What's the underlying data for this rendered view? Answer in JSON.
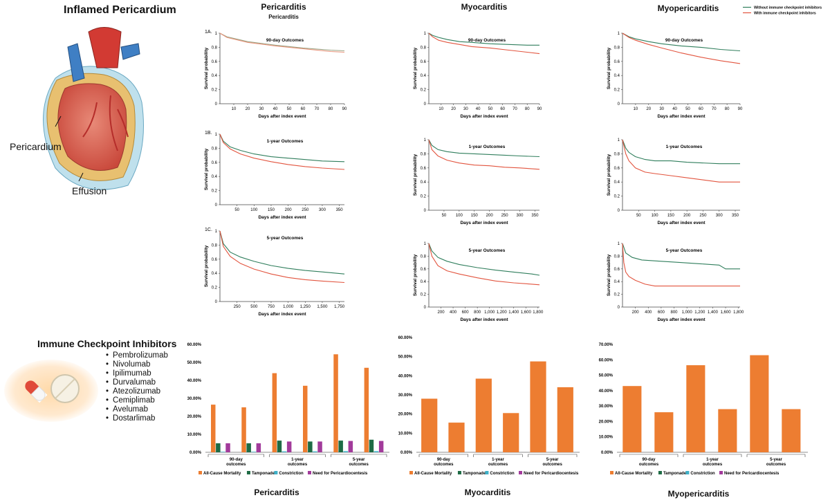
{
  "illustration": {
    "title": "Inflamed Pericardium",
    "label_pericardium": "Pericardium",
    "label_effusion": "Effusion"
  },
  "ici": {
    "title": "Immune Checkpoint Inhibitors",
    "drugs": [
      "Pembrolizumab",
      "Nivolumab",
      "Ipilimumab",
      "Durvalumab",
      "Atezolizumab",
      "Cemiplimab",
      "Avelumab",
      "Dostarlimab"
    ]
  },
  "legend": {
    "without": "Without immune checkpoint inhibitors",
    "with": "With immune checkpoint inhibitors",
    "colors": {
      "without": "#2e7d5b",
      "with": "#e2533d"
    }
  },
  "columns": {
    "pericarditis": {
      "title": "Pericarditis",
      "subtitle": "Pericarditis",
      "bottom_title": "Pericarditis"
    },
    "myocarditis": {
      "title": "Myocarditis",
      "bottom_title": "Myocarditis"
    },
    "myopericarditis": {
      "title": "Myopericarditis",
      "bottom_title": "Myopericarditis"
    }
  },
  "chart_data": [
    {
      "type": "line",
      "panel_id": "1A.",
      "title": "90-day Outcomes",
      "xlabel": "Days after index event",
      "ylabel": "Survival probability",
      "xlim": [
        0,
        90
      ],
      "ylim": [
        0,
        1
      ],
      "xticks": [
        "10",
        "20",
        "30",
        "40",
        "50",
        "60",
        "70",
        "80",
        "90"
      ],
      "yticks": [
        "0",
        "0.2",
        "0.4",
        "0.6",
        "0.8",
        "1"
      ],
      "series": [
        {
          "name": "Without immune checkpoint inhibitors",
          "color": "#9aa383",
          "x": [
            0,
            5,
            20,
            40,
            60,
            80,
            90
          ],
          "y": [
            1,
            0.95,
            0.88,
            0.83,
            0.79,
            0.76,
            0.75
          ]
        },
        {
          "name": "With immune checkpoint inhibitors",
          "color": "#e8937a",
          "x": [
            0,
            5,
            20,
            40,
            60,
            80,
            90
          ],
          "y": [
            1,
            0.94,
            0.87,
            0.82,
            0.78,
            0.74,
            0.73
          ]
        }
      ]
    },
    {
      "type": "line",
      "panel_id": "",
      "title": "90-day Outcomes",
      "xlabel": "Days after index event",
      "ylabel": "Survival probability",
      "xlim": [
        0,
        90
      ],
      "ylim": [
        0,
        1
      ],
      "xticks": [
        "10",
        "20",
        "30",
        "40",
        "50",
        "60",
        "70",
        "80",
        "90"
      ],
      "yticks": [
        "0",
        "0.2",
        "0.4",
        "0.6",
        "0.8",
        "1"
      ],
      "series": [
        {
          "name": "Without immune checkpoint inhibitors",
          "color": "#2e7d5b",
          "x": [
            0,
            3,
            8,
            15,
            25,
            35,
            50,
            65,
            80,
            90
          ],
          "y": [
            1,
            0.97,
            0.94,
            0.91,
            0.88,
            0.87,
            0.85,
            0.84,
            0.83,
            0.83
          ]
        },
        {
          "name": "With immune checkpoint inhibitors",
          "color": "#e2533d",
          "x": [
            0,
            3,
            8,
            15,
            25,
            35,
            50,
            65,
            80,
            90
          ],
          "y": [
            1,
            0.95,
            0.9,
            0.87,
            0.84,
            0.81,
            0.79,
            0.76,
            0.73,
            0.71
          ]
        }
      ]
    },
    {
      "type": "line",
      "panel_id": "",
      "title": "90-day Outcomes",
      "xlabel": "Days after index event",
      "ylabel": "Survival probability",
      "xlim": [
        0,
        90
      ],
      "ylim": [
        0,
        1
      ],
      "xticks": [
        "10",
        "20",
        "30",
        "40",
        "50",
        "60",
        "70",
        "80",
        "90"
      ],
      "yticks": [
        "0",
        "0.2",
        "0.4",
        "0.6",
        "0.8",
        "1"
      ],
      "series": [
        {
          "name": "Without immune checkpoint inhibitors",
          "color": "#2e7d5b",
          "x": [
            0,
            5,
            10,
            20,
            30,
            45,
            60,
            75,
            90
          ],
          "y": [
            1,
            0.95,
            0.92,
            0.88,
            0.85,
            0.82,
            0.8,
            0.77,
            0.75
          ]
        },
        {
          "name": "With immune checkpoint inhibitors",
          "color": "#e2533d",
          "x": [
            0,
            5,
            10,
            20,
            30,
            45,
            60,
            75,
            90
          ],
          "y": [
            1,
            0.94,
            0.9,
            0.84,
            0.79,
            0.72,
            0.66,
            0.61,
            0.57
          ]
        }
      ]
    },
    {
      "type": "line",
      "panel_id": "1B.",
      "title": "1-year Outcomes",
      "xlabel": "Days after index event",
      "ylabel": "Survival probability",
      "xlim": [
        0,
        365
      ],
      "ylim": [
        0,
        1
      ],
      "xticks": [
        "50",
        "100",
        "150",
        "200",
        "250",
        "300",
        "350"
      ],
      "yticks": [
        "0",
        "0.2",
        "0.4",
        "0.6",
        "0.8",
        "1"
      ],
      "series": [
        {
          "name": "Without immune checkpoint inhibitors",
          "color": "#2e7d5b",
          "x": [
            0,
            10,
            30,
            60,
            100,
            150,
            200,
            250,
            300,
            365
          ],
          "y": [
            1,
            0.9,
            0.82,
            0.77,
            0.72,
            0.68,
            0.66,
            0.64,
            0.62,
            0.61
          ]
        },
        {
          "name": "With immune checkpoint inhibitors",
          "color": "#e2533d",
          "x": [
            0,
            10,
            30,
            60,
            100,
            150,
            200,
            250,
            300,
            365
          ],
          "y": [
            1,
            0.88,
            0.79,
            0.72,
            0.66,
            0.61,
            0.57,
            0.54,
            0.52,
            0.5
          ]
        }
      ]
    },
    {
      "type": "line",
      "panel_id": "",
      "title": "1-year Outcomes",
      "xlabel": "Days after index event",
      "ylabel": "Survival probability",
      "xlim": [
        0,
        365
      ],
      "ylim": [
        0,
        1
      ],
      "xticks": [
        "50",
        "100",
        "150",
        "200",
        "250",
        "300",
        "350"
      ],
      "yticks": [
        "0",
        "0.2",
        "0.4",
        "0.6",
        "0.8",
        "1"
      ],
      "series": [
        {
          "name": "Without immune checkpoint inhibitors",
          "color": "#2e7d5b",
          "x": [
            0,
            10,
            30,
            60,
            100,
            150,
            200,
            250,
            300,
            365
          ],
          "y": [
            1,
            0.92,
            0.86,
            0.83,
            0.81,
            0.8,
            0.79,
            0.78,
            0.77,
            0.76
          ]
        },
        {
          "name": "With immune checkpoint inhibitors",
          "color": "#e2533d",
          "x": [
            0,
            10,
            30,
            60,
            100,
            150,
            200,
            250,
            300,
            365
          ],
          "y": [
            1,
            0.86,
            0.77,
            0.71,
            0.67,
            0.64,
            0.63,
            0.61,
            0.6,
            0.58
          ]
        }
      ]
    },
    {
      "type": "line",
      "panel_id": "",
      "title": "1-year Outcomes",
      "xlabel": "Days after index event",
      "ylabel": "Survival probability",
      "xlim": [
        0,
        365
      ],
      "ylim": [
        0,
        1
      ],
      "xticks": [
        "50",
        "100",
        "150",
        "200",
        "250",
        "300",
        "350"
      ],
      "yticks": [
        "0",
        "0.2",
        "0.4",
        "0.6",
        "0.8",
        "1"
      ],
      "series": [
        {
          "name": "Without immune checkpoint inhibitors",
          "color": "#2e7d5b",
          "x": [
            0,
            10,
            20,
            40,
            70,
            100,
            150,
            200,
            300,
            365
          ],
          "y": [
            1,
            0.88,
            0.82,
            0.76,
            0.72,
            0.7,
            0.7,
            0.68,
            0.66,
            0.66
          ]
        },
        {
          "name": "With immune checkpoint inhibitors",
          "color": "#e2533d",
          "x": [
            0,
            10,
            20,
            40,
            70,
            100,
            150,
            200,
            300,
            365
          ],
          "y": [
            1,
            0.8,
            0.7,
            0.6,
            0.54,
            0.52,
            0.49,
            0.46,
            0.4,
            0.4
          ]
        }
      ]
    },
    {
      "type": "line",
      "panel_id": "1C.",
      "title": "5-year Outcomes",
      "xlabel": "Days after index event",
      "ylabel": "Survival probability",
      "xlim": [
        0,
        1825
      ],
      "ylim": [
        0,
        1
      ],
      "xticks": [
        "250",
        "500",
        "750",
        "1,000",
        "1,250",
        "1,500",
        "1,750"
      ],
      "yticks": [
        "0",
        "0.2",
        "0.4",
        "0.6",
        "0.8",
        "1"
      ],
      "series": [
        {
          "name": "Without immune checkpoint inhibitors",
          "color": "#2e7d5b",
          "x": [
            0,
            50,
            150,
            300,
            500,
            750,
            1000,
            1250,
            1500,
            1825
          ],
          "y": [
            1,
            0.82,
            0.7,
            0.63,
            0.57,
            0.51,
            0.47,
            0.44,
            0.42,
            0.39
          ]
        },
        {
          "name": "With immune checkpoint inhibitors",
          "color": "#e2533d",
          "x": [
            0,
            50,
            150,
            300,
            500,
            750,
            1000,
            1250,
            1500,
            1825
          ],
          "y": [
            1,
            0.78,
            0.64,
            0.54,
            0.46,
            0.39,
            0.34,
            0.31,
            0.29,
            0.27
          ]
        }
      ]
    },
    {
      "type": "line",
      "panel_id": "",
      "title": "5-year Outcomes",
      "xlabel": "Days after index event",
      "ylabel": "Survival probability",
      "xlim": [
        0,
        1825
      ],
      "ylim": [
        0,
        1
      ],
      "xticks": [
        "200",
        "400",
        "600",
        "800",
        "1,000",
        "1,200",
        "1,400",
        "1,600",
        "1,800"
      ],
      "yticks": [
        "0",
        "0.2",
        "0.4",
        "0.6",
        "0.8",
        "1"
      ],
      "series": [
        {
          "name": "Without immune checkpoint inhibitors",
          "color": "#2e7d5b",
          "x": [
            0,
            50,
            150,
            300,
            500,
            800,
            1100,
            1400,
            1700,
            1825
          ],
          "y": [
            1,
            0.88,
            0.78,
            0.72,
            0.67,
            0.62,
            0.58,
            0.55,
            0.52,
            0.5
          ]
        },
        {
          "name": "With immune checkpoint inhibitors",
          "color": "#e2533d",
          "x": [
            0,
            50,
            150,
            300,
            500,
            800,
            1100,
            1400,
            1700,
            1825
          ],
          "y": [
            1,
            0.8,
            0.65,
            0.57,
            0.52,
            0.46,
            0.41,
            0.38,
            0.36,
            0.35
          ]
        }
      ]
    },
    {
      "type": "line",
      "panel_id": "",
      "title": "5-year Outcomes",
      "xlabel": "Days after index event",
      "ylabel": "Survival probability",
      "xlim": [
        0,
        1825
      ],
      "ylim": [
        0,
        1
      ],
      "xticks": [
        "200",
        "400",
        "600",
        "800",
        "1,000",
        "1,200",
        "1,400",
        "1,600",
        "1,800"
      ],
      "yticks": [
        "0",
        "0.2",
        "0.4",
        "0.6",
        "0.8",
        "1"
      ],
      "series": [
        {
          "name": "Without immune checkpoint inhibitors",
          "color": "#2e7d5b",
          "x": [
            0,
            50,
            150,
            300,
            600,
            900,
            1200,
            1500,
            1600,
            1825
          ],
          "y": [
            1,
            0.85,
            0.78,
            0.74,
            0.72,
            0.7,
            0.68,
            0.66,
            0.6,
            0.6
          ]
        },
        {
          "name": "With immune checkpoint inhibitors",
          "color": "#e2533d",
          "x": [
            0,
            20,
            50,
            100,
            200,
            350,
            500,
            800,
            1200,
            1825
          ],
          "y": [
            1,
            0.7,
            0.55,
            0.48,
            0.42,
            0.36,
            0.33,
            0.33,
            0.33,
            0.33
          ]
        }
      ]
    },
    {
      "type": "bar",
      "title": "Pericarditis",
      "groups": [
        "90-day outcomes",
        "1-year outcomes",
        "5-year outcomes"
      ],
      "yticks": [
        "0.00%",
        "10.00%",
        "20.00%",
        "30.00%",
        "40.00%",
        "50.00%",
        "60.00%"
      ],
      "ylim": [
        0,
        60
      ],
      "series": [
        {
          "name": "All-Cause Mortality",
          "color": "#ed7d31",
          "values": [
            26.5,
            25,
            44,
            37,
            54.5,
            47
          ]
        },
        {
          "name": "Tamponade",
          "color": "#1e6b45",
          "values": [
            5,
            5,
            6.5,
            6,
            6.5,
            7
          ]
        },
        {
          "name": "Constriction",
          "color": "#3fb0c8",
          "values": [
            0.3,
            0.3,
            0.5,
            0.5,
            0.6,
            0.6
          ]
        },
        {
          "name": "Need for Pericardiocentesis",
          "color": "#a23b9b",
          "values": [
            5,
            5,
            6,
            6,
            6.3,
            6.3
          ]
        }
      ],
      "legend": [
        "All-Cause Mortality",
        "Tamponade",
        "Constriction",
        "Need for Pericardiocentesis"
      ]
    },
    {
      "type": "bar",
      "title": "Myocarditis",
      "groups": [
        "90-day outcomes",
        "1-year outcomes",
        "5-year outcomes"
      ],
      "yticks": [
        "0.00%",
        "10.00%",
        "20.00%",
        "30.00%",
        "40.00%",
        "50.00%",
        "60.00%"
      ],
      "ylim": [
        0,
        60
      ],
      "series": [
        {
          "name": "All-Cause Mortality",
          "color": "#ed7d31",
          "values": [
            28,
            15.5,
            38.5,
            20.5,
            47.5,
            34
          ]
        }
      ],
      "legend": [
        "All-Cause Mortality",
        "Tamponade",
        "Constriction",
        "Need for Pericardiocentesis"
      ]
    },
    {
      "type": "bar",
      "title": "Myopericarditis",
      "groups": [
        "90-day outcomes",
        "1-year outcomes",
        "5-year outcomes"
      ],
      "yticks": [
        "0.00%",
        "10.00%",
        "20.00%",
        "30.00%",
        "40.00%",
        "50.00%",
        "60.00%",
        "70.00%"
      ],
      "ylim": [
        0,
        70
      ],
      "series": [
        {
          "name": "All-Cause Mortality",
          "color": "#ed7d31",
          "values": [
            43,
            26,
            56.5,
            28,
            63,
            28
          ]
        }
      ],
      "legend": [
        "All-Cause Mortality",
        "Tamponade",
        "Constriction",
        "Need for Pericardiocentesis"
      ]
    }
  ]
}
